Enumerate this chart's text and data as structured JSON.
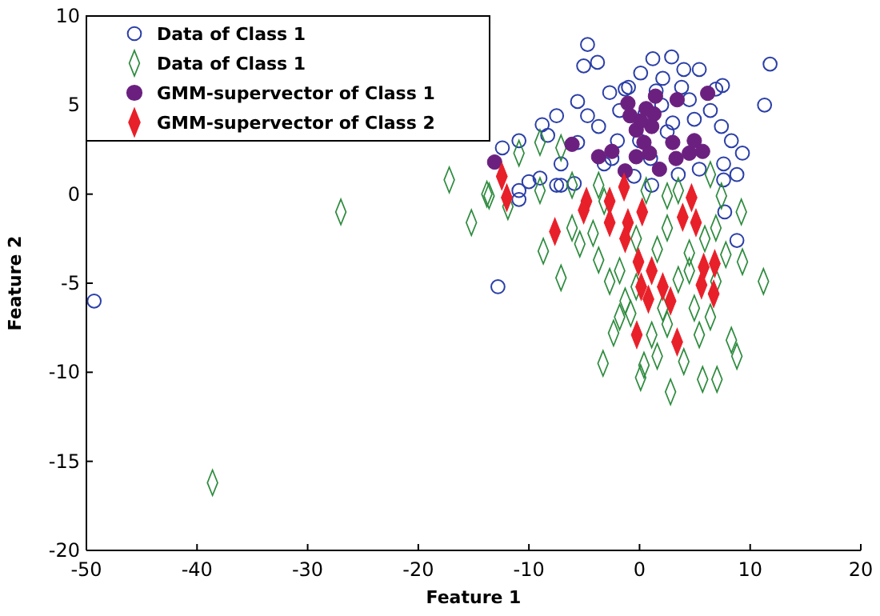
{
  "chart_data": {
    "type": "scatter",
    "xlabel": "Feature 1",
    "ylabel": "Feature 2",
    "xlim": [
      -50,
      20
    ],
    "ylim": [
      -20,
      10
    ],
    "xticks": [
      -50,
      -40,
      -30,
      -20,
      -10,
      0,
      10,
      20
    ],
    "yticks": [
      -20,
      -15,
      -10,
      -5,
      0,
      5,
      10
    ],
    "grid": false,
    "legend": "top left",
    "series": [
      {
        "name": "Data of Class 1",
        "color": "#2b3fa8",
        "marker": "circle",
        "x": [
          -4.7,
          -5.05,
          -3.8,
          2.9,
          1.2,
          4.0,
          5.4,
          11.8,
          11.3,
          7.5,
          -2.7,
          -5.6,
          -7.5,
          -8.8,
          -10.9,
          -12.4,
          -8.3,
          -4.7,
          -3.7,
          -1.8,
          4.95,
          6.4,
          7.4,
          8.3,
          9.3,
          7.6,
          5.4,
          8.8,
          -9.0,
          -10.9,
          -7.1,
          -5.6,
          2.1,
          0.1,
          -1.3,
          4.5,
          6.9,
          -3.2,
          3.5,
          -7.1,
          1.1,
          -12.8,
          8.8,
          7.7,
          7.6,
          -7.5,
          -5.9,
          -10.0,
          -10.9,
          -49.3,
          0.0,
          2.0,
          -2.0,
          3.0,
          1.0,
          -1.0,
          2.5,
          -0.5,
          1.5,
          3.8,
          -2.5,
          0.5
        ],
        "values": [
          8.4,
          7.2,
          7.4,
          7.7,
          7.6,
          7.0,
          7.0,
          7.3,
          5.0,
          6.1,
          5.7,
          5.2,
          4.4,
          3.9,
          3.0,
          2.6,
          3.3,
          4.4,
          3.8,
          4.7,
          4.2,
          4.7,
          3.8,
          3.0,
          2.3,
          1.7,
          1.4,
          1.1,
          0.9,
          0.2,
          0.5,
          2.9,
          6.5,
          6.8,
          5.9,
          5.3,
          5.9,
          1.7,
          1.1,
          1.7,
          0.5,
          -5.2,
          -2.6,
          -1.0,
          0.8,
          0.5,
          0.6,
          0.7,
          -0.3,
          -6.0,
          3.0,
          5.0,
          3.0,
          4.0,
          2.0,
          6.0,
          3.5,
          1.0,
          5.8,
          6.0,
          2.0,
          4.5
        ]
      },
      {
        "name": "Data of Class 1",
        "color": "#2e8b3e",
        "marker": "diamond",
        "x": [
          -27.0,
          -38.6,
          -17.2,
          -15.2,
          -8.7,
          -7.1,
          11.2,
          9.2,
          9.3,
          -2.35,
          -3.3,
          0.4,
          5.7,
          7.0,
          2.8,
          8.8,
          8.3,
          5.4,
          -1.8,
          -1.3,
          -3.7,
          -6.1,
          -5.4,
          1.6,
          4.5,
          6.9,
          7.8,
          4.95,
          6.4,
          2.5,
          1.1,
          1.6,
          4.0,
          0.1,
          -0.8,
          -0.3,
          3.5,
          -1.8,
          -2.7,
          -4.2,
          -0.3,
          2.5,
          5.9,
          7.4,
          -9.0,
          -13.6,
          -11.9,
          2.5,
          0.6,
          -6.1,
          -3.2,
          4.5,
          6.9,
          2.1,
          -3.7,
          -10.9,
          -9.0,
          -7.1,
          -13.8,
          3.5,
          6.4
        ],
        "values": [
          -1.0,
          -16.2,
          0.8,
          -1.6,
          -3.2,
          -4.7,
          -4.9,
          -1.0,
          -3.8,
          -7.8,
          -9.5,
          -9.6,
          -10.4,
          -10.4,
          -11.1,
          -9.1,
          -8.2,
          -7.9,
          -6.9,
          -6.0,
          -3.7,
          -1.9,
          -2.8,
          -3.1,
          -3.3,
          -1.9,
          -3.4,
          -6.4,
          -6.9,
          -7.3,
          -7.9,
          -9.1,
          -9.4,
          -10.3,
          -6.7,
          -5.2,
          -4.8,
          -4.3,
          -4.9,
          -2.2,
          -2.5,
          -1.9,
          -2.5,
          -0.1,
          0.2,
          -0.1,
          -0.7,
          -0.1,
          0.2,
          0.5,
          -0.4,
          -4.3,
          -4.9,
          -6.4,
          0.5,
          2.3,
          2.9,
          2.6,
          0.0,
          0.2,
          1.1
        ]
      },
      {
        "name": "GMM-supervector of Class 1",
        "color": "#6b2080",
        "marker": "circle",
        "x": [
          6.16,
          3.4,
          1.44,
          -1.05,
          0.6,
          -0.85,
          1.3,
          -0.3,
          1.1,
          0.4,
          0.9,
          -0.3,
          3.0,
          3.3,
          4.95,
          5.7,
          4.5,
          -2.5,
          -3.7,
          -6.1,
          -13.1,
          -1.3,
          1.8,
          0.1
        ],
        "values": [
          5.66,
          5.3,
          5.5,
          5.1,
          4.8,
          4.4,
          4.5,
          3.6,
          3.8,
          2.9,
          2.3,
          2.1,
          2.9,
          2.0,
          3.0,
          2.4,
          2.3,
          2.4,
          2.1,
          2.8,
          1.8,
          1.3,
          1.4,
          4.1
        ]
      },
      {
        "name": "GMM-supervector of Class 2",
        "color": "#e8202a",
        "marker": "diamond",
        "x": [
          -12.45,
          -12.0,
          -1.4,
          4.7,
          -4.8,
          -2.7,
          -5.05,
          -2.7,
          -1.05,
          -1.3,
          0.24,
          3.9,
          5.1,
          -7.65,
          -0.1,
          1.1,
          5.8,
          6.8,
          0.15,
          0.8,
          2.1,
          2.8,
          5.6,
          6.7,
          -0.25,
          3.4
        ],
        "values": [
          1.0,
          -0.2,
          0.4,
          -0.2,
          -0.4,
          -0.4,
          -0.9,
          -1.6,
          -1.6,
          -2.5,
          -1.0,
          -1.3,
          -1.6,
          -2.1,
          -3.8,
          -4.3,
          -4.1,
          -3.9,
          -5.2,
          -5.9,
          -5.2,
          -6.0,
          -5.1,
          -5.6,
          -7.9,
          -8.3
        ]
      }
    ]
  }
}
